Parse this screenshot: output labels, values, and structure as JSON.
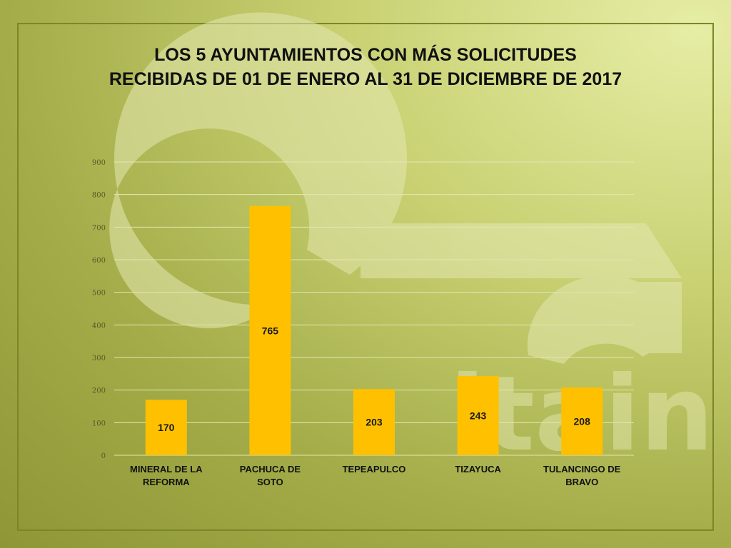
{
  "title_line1": "LOS 5 AYUNTAMIENTOS CON MÁS SOLICITUDES",
  "title_line2": "RECIBIDAS DE 01 DE ENERO AL 31 DE DICIEMBRE DE 2017",
  "colors": {
    "bar": "#ffc000",
    "grid": "#e2e6b0",
    "text": "#111111"
  },
  "watermark": {
    "text": "itain"
  },
  "chart_data": {
    "type": "bar",
    "title": "LOS 5 AYUNTAMIENTOS CON MÁS SOLICITUDES RECIBIDAS DE 01 DE ENERO AL 31 DE DICIEMBRE DE 2017",
    "categories": [
      [
        "MINERAL DE LA",
        "REFORMA"
      ],
      [
        "PACHUCA DE",
        "SOTO"
      ],
      [
        "TEPEAPULCO"
      ],
      [
        "TIZAYUCA"
      ],
      [
        "TULANCINGO DE",
        "BRAVO"
      ]
    ],
    "values": [
      170,
      765,
      203,
      243,
      208
    ],
    "xlabel": "",
    "ylabel": "",
    "ylim": [
      0,
      900
    ],
    "yticks": [
      0,
      100,
      200,
      300,
      400,
      500,
      600,
      700,
      800,
      900
    ],
    "grid": true,
    "legend": "none"
  }
}
